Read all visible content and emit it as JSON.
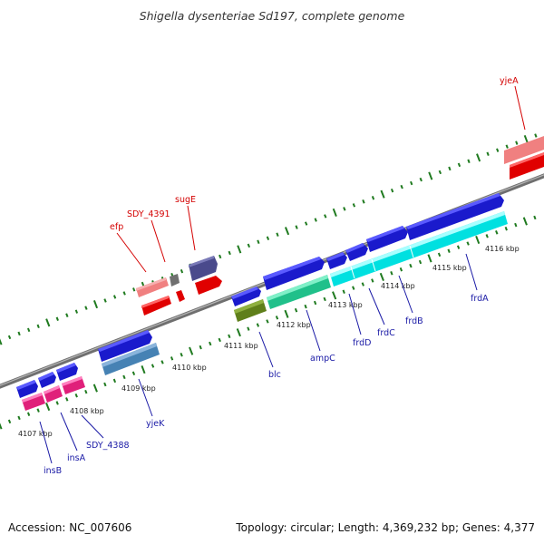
{
  "title": "Shigella dysenteriae Sd197, complete genome",
  "footer": {
    "accession": "Accession: NC_007606",
    "topology": "Topology: circular; Length: 4,369,232 bp; Genes: 4,377"
  },
  "scale_labels": [
    "4107 kbp",
    "4108 kbp",
    "4109 kbp",
    "4110 kbp",
    "4111 kbp",
    "4112 kbp",
    "4113 kbp",
    "4114 kbp",
    "4115 kbp",
    "4116 kbp"
  ],
  "gene_labels": [
    {
      "id": "yjeA",
      "text": "yjeA",
      "strand": "plus",
      "color": "#d40000"
    },
    {
      "id": "sugE",
      "text": "sugE",
      "strand": "plus",
      "color": "#d40000"
    },
    {
      "id": "SDY_4391",
      "text": "SDY_4391",
      "strand": "plus",
      "color": "#d40000"
    },
    {
      "id": "efp",
      "text": "efp",
      "strand": "plus",
      "color": "#d40000"
    },
    {
      "id": "frdA",
      "text": "frdA",
      "strand": "minus",
      "color": "#1a1aa6"
    },
    {
      "id": "frdB",
      "text": "frdB",
      "strand": "minus",
      "color": "#1a1aa6"
    },
    {
      "id": "frdC",
      "text": "frdC",
      "strand": "minus",
      "color": "#1a1aa6"
    },
    {
      "id": "frdD",
      "text": "frdD",
      "strand": "minus",
      "color": "#1a1aa6"
    },
    {
      "id": "ampC",
      "text": "ampC",
      "strand": "minus",
      "color": "#1a1aa6"
    },
    {
      "id": "blc",
      "text": "blc",
      "strand": "minus",
      "color": "#1a1aa6"
    },
    {
      "id": "yjeK",
      "text": "yjeK",
      "strand": "minus",
      "color": "#1a1aa6"
    },
    {
      "id": "SDY_4388",
      "text": "SDY_4388",
      "strand": "minus",
      "color": "#1a1aa6"
    },
    {
      "id": "insA",
      "text": "insA",
      "strand": "minus",
      "color": "#1a1aa6"
    },
    {
      "id": "insB",
      "text": "insB",
      "strand": "minus",
      "color": "#1a1aa6"
    }
  ],
  "colors": {
    "plus_label": "#d40000",
    "minus_label": "#1a1aa6",
    "backbone": "#8a8a8a",
    "tick": "#1f7a1f"
  }
}
